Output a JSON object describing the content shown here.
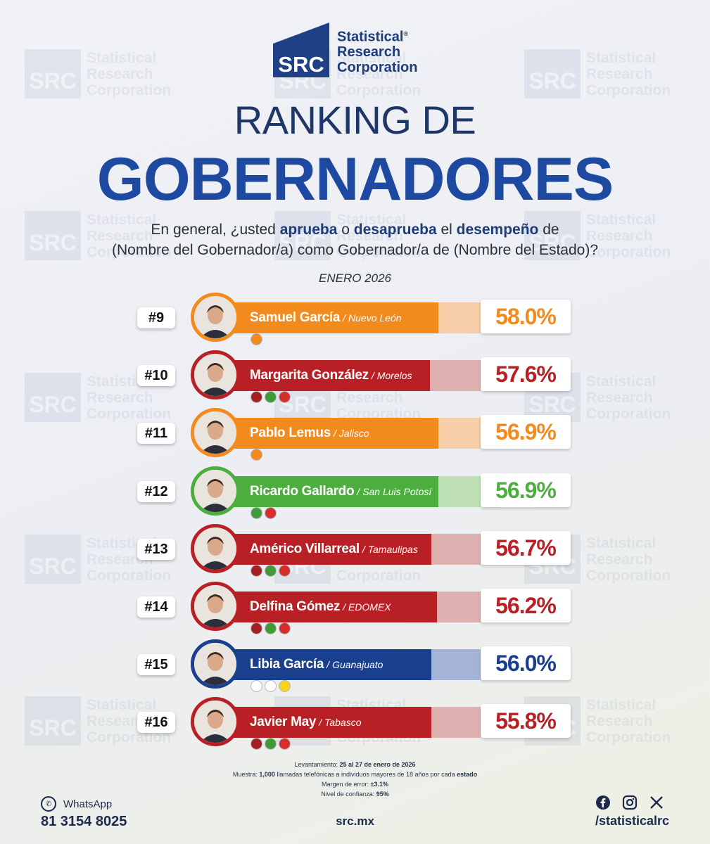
{
  "brand": {
    "logo_letters": "SRC",
    "name_line1": "Statistical",
    "name_line2": "Research",
    "name_line3": "Corporation",
    "registered": "®"
  },
  "title_line1": "RANKING DE",
  "title_line2": "GOBERNADORES",
  "question": {
    "p1": "En general, ¿usted ",
    "b1": "aprueba",
    "p2": " o ",
    "b2": "desaprueba",
    "p3": " el ",
    "b3": "desempeño",
    "p4": " de",
    "line2": "(Nombre del Gobernador/a) como Gobernador/a de (Nombre del Estado)?"
  },
  "period": "ENERO 2026",
  "chart_data": {
    "type": "bar",
    "unit": "%",
    "series": [
      {
        "rank": "#9",
        "name": "Samuel García",
        "state": "Nuevo León",
        "value": 58.0,
        "label": "58.0%",
        "color": "#f28a1e",
        "light": "#f6cfaa",
        "parties": [
          "MC"
        ]
      },
      {
        "rank": "#10",
        "name": "Margarita González",
        "state": "Morelos",
        "value": 57.6,
        "label": "57.6%",
        "color": "#b92025",
        "light": "#deb1b1",
        "parties": [
          "MORENA",
          "PVEM",
          "PT"
        ]
      },
      {
        "rank": "#11",
        "name": "Pablo Lemus",
        "state": "Jalisco",
        "value": 56.9,
        "label": "56.9%",
        "color": "#f28a1e",
        "light": "#f6cfaa",
        "parties": [
          "MC"
        ]
      },
      {
        "rank": "#12",
        "name": "Ricardo Gallardo",
        "state": "San Luis Potosí",
        "value": 56.9,
        "label": "56.9%",
        "color": "#4cae3e",
        "light": "#bfe0b6",
        "parties": [
          "PVEM",
          "PT"
        ]
      },
      {
        "rank": "#13",
        "name": "Américo Villarreal",
        "state": "Tamaulipas",
        "value": 56.7,
        "label": "56.7%",
        "color": "#b92025",
        "light": "#deb1b1",
        "parties": [
          "MORENA",
          "PVEM",
          "PT"
        ]
      },
      {
        "rank": "#14",
        "name": "Delfina Gómez",
        "state": "EDOMEX",
        "value": 56.2,
        "label": "56.2%",
        "color": "#b92025",
        "light": "#deb1b1",
        "parties": [
          "MORENA",
          "PVEM",
          "PT"
        ]
      },
      {
        "rank": "#15",
        "name": "Libia García",
        "state": "Guanajuato",
        "value": 56.0,
        "label": "56.0%",
        "color": "#1b3f8f",
        "light": "#a4b4d6",
        "parties": [
          "PAN",
          "PRI",
          "PRD"
        ]
      },
      {
        "rank": "#16",
        "name": "Javier May",
        "state": "Tabasco",
        "value": 55.8,
        "label": "55.8%",
        "color": "#b92025",
        "light": "#deb1b1",
        "parties": [
          "MORENA",
          "PVEM",
          "PT"
        ]
      }
    ]
  },
  "method": {
    "l1_label": "Levantamiento: ",
    "l1_value": "25 al 27 de enero de 2026",
    "l2_label": "Muestra: ",
    "l2_value": "1,000",
    "l2_rest": " llamadas telefónicas a individuos mayores de 18 años por cada ",
    "l2_bold": "estado",
    "l3_label": "Margen de error: ",
    "l3_value": "±3.1%",
    "l4_label": "Nivel de confianza: ",
    "l4_value": "95%"
  },
  "footer": {
    "whatsapp_label": "WhatsApp",
    "phone": "81 3154 8025",
    "site": "src.mx",
    "handle": "/statisticalrc"
  }
}
